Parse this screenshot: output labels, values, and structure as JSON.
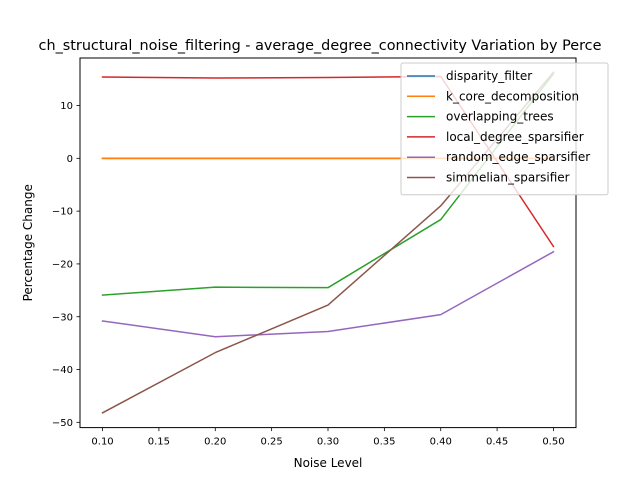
{
  "chart_data": {
    "type": "line",
    "title": "ch_structural_noise_filtering - average_degree_connectivity Variation by Perce",
    "xlabel": "Noise Level",
    "ylabel": "Percentage Change",
    "x": [
      0.1,
      0.2,
      0.3,
      0.4,
      0.5
    ],
    "xlim": [
      0.08,
      0.52
    ],
    "ylim": [
      -51,
      19
    ],
    "x_ticks": [
      0.1,
      0.15,
      0.2,
      0.25,
      0.3,
      0.35,
      0.4,
      0.45,
      0.5
    ],
    "x_tick_labels": [
      "0.10",
      "0.15",
      "0.20",
      "0.25",
      "0.30",
      "0.35",
      "0.40",
      "0.45",
      "0.50"
    ],
    "y_ticks": [
      -50,
      -40,
      -30,
      -20,
      -10,
      0,
      10
    ],
    "y_tick_labels": [
      "−50",
      "−40",
      "−30",
      "−20",
      "−10",
      "0",
      "10"
    ],
    "grid": false,
    "legend_position": "top-right",
    "series": [
      {
        "name": "disparity_filter",
        "color": "#1f77b4",
        "values": [
          0,
          0,
          0,
          0,
          0
        ]
      },
      {
        "name": "k_core_decomposition",
        "color": "#ff7f0e",
        "values": [
          0,
          0,
          0,
          0,
          0
        ]
      },
      {
        "name": "overlapping_trees",
        "color": "#2ca02c",
        "values": [
          -25.9,
          -24.4,
          -24.5,
          -11.6,
          16.0
        ]
      },
      {
        "name": "local_degree_sparsifier",
        "color": "#d62728",
        "values": [
          15.4,
          15.2,
          15.3,
          15.5,
          -16.7
        ]
      },
      {
        "name": "random_edge_sparsifier",
        "color": "#9467bd",
        "values": [
          -30.8,
          -33.8,
          -32.8,
          -29.6,
          -17.7
        ]
      },
      {
        "name": "simmelian_sparsifier",
        "color": "#8c564b",
        "values": [
          -48.2,
          -36.8,
          -27.8,
          -9.0,
          16.3
        ]
      }
    ]
  }
}
